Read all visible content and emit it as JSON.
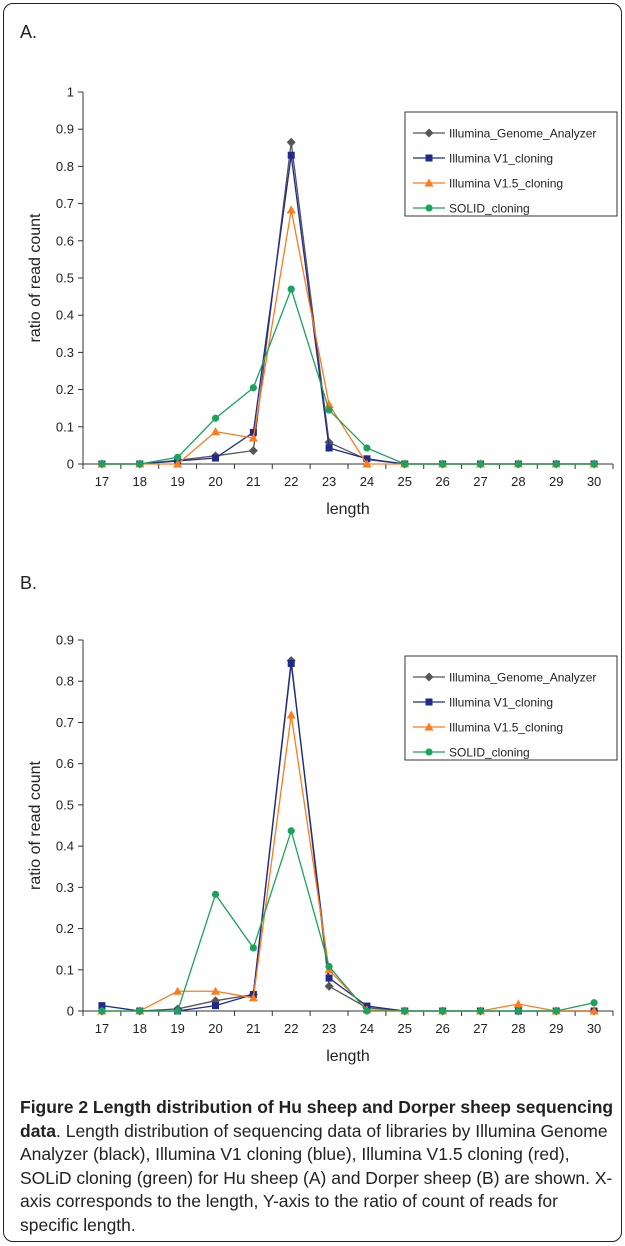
{
  "panels": [
    {
      "label": "A."
    },
    {
      "label": "B."
    }
  ],
  "caption": {
    "title": "Figure 2 Length distribution of Hu sheep and Dorper sheep sequencing data",
    "text": ". Length distribution of sequencing data of libraries by Illumina Genome Analyzer (black), Illumina V1 cloning (blue), Illumina V1.5 cloning (red), SOLiD cloning (green) for Hu sheep (A) and Dorper sheep (B) are shown. X-axis corresponds to the length, Y-axis to the ratio of count of reads for specific length."
  },
  "chart_data": [
    {
      "type": "line",
      "panel": "A.",
      "xlabel": "length",
      "ylabel": "ratio of read count",
      "categories": [
        "17",
        "18",
        "19",
        "20",
        "21",
        "22",
        "23",
        "24",
        "25",
        "26",
        "27",
        "28",
        "29",
        "30"
      ],
      "ylim": [
        0,
        1
      ],
      "yticks": [
        "0",
        "0.1",
        "0.2",
        "0.3",
        "0.4",
        "0.5",
        "0.6",
        "0.7",
        "0.8",
        "0.9",
        "1"
      ],
      "legend": "top-right",
      "series": [
        {
          "name": "Illumina_Genome_Analyzer",
          "color": "#555555",
          "marker": "diamond",
          "values": [
            0,
            0,
            0.01,
            0.022,
            0.036,
            0.865,
            0.058,
            0.012,
            0,
            0,
            0,
            0,
            0,
            0
          ]
        },
        {
          "name": "Illumina V1_cloning",
          "color": "#1f2a8c",
          "marker": "square",
          "values": [
            0,
            0,
            0.008,
            0.016,
            0.085,
            0.83,
            0.043,
            0.014,
            0,
            0,
            0,
            0,
            0,
            0
          ]
        },
        {
          "name": "Illumina V1.5_cloning",
          "color": "#ff7a1a",
          "marker": "triangle",
          "values": [
            0,
            0,
            0,
            0.087,
            0.07,
            0.683,
            0.16,
            0,
            0,
            0,
            0,
            0,
            0,
            0
          ]
        },
        {
          "name": "SOLID_cloning",
          "color": "#1aa35a",
          "marker": "circle",
          "values": [
            0,
            0,
            0.018,
            0.123,
            0.205,
            0.47,
            0.145,
            0.043,
            0,
            0,
            0,
            0,
            0,
            0
          ]
        }
      ]
    },
    {
      "type": "line",
      "panel": "B.",
      "xlabel": "length",
      "ylabel": "ratio of read count",
      "categories": [
        "17",
        "18",
        "19",
        "20",
        "21",
        "22",
        "23",
        "24",
        "25",
        "26",
        "27",
        "28",
        "29",
        "30"
      ],
      "ylim": [
        0,
        0.9
      ],
      "yticks": [
        "0",
        "0.1",
        "0.2",
        "0.3",
        "0.4",
        "0.5",
        "0.6",
        "0.7",
        "0.8",
        "0.9"
      ],
      "legend": "top-right",
      "series": [
        {
          "name": "Illumina_Genome_Analyzer",
          "color": "#555555",
          "marker": "diamond",
          "values": [
            0,
            0,
            0.005,
            0.025,
            0.04,
            0.85,
            0.06,
            0.008,
            0,
            0,
            0,
            0,
            0,
            0
          ]
        },
        {
          "name": "Illumina V1_cloning",
          "color": "#1f2a8c",
          "marker": "square",
          "values": [
            0.013,
            0,
            0,
            0.013,
            0.04,
            0.843,
            0.08,
            0.012,
            0,
            0,
            0,
            0,
            0,
            0
          ]
        },
        {
          "name": "Illumina V1.5_cloning",
          "color": "#ff7a1a",
          "marker": "triangle",
          "values": [
            0,
            0,
            0.048,
            0.048,
            0.032,
            0.718,
            0.1,
            0.003,
            0,
            0,
            0,
            0.017,
            0,
            0
          ]
        },
        {
          "name": "SOLID_cloning",
          "color": "#1aa35a",
          "marker": "circle",
          "values": [
            0,
            0,
            0,
            0.283,
            0.153,
            0.437,
            0.108,
            0,
            0,
            0,
            0,
            0,
            0,
            0.02
          ]
        }
      ]
    }
  ]
}
